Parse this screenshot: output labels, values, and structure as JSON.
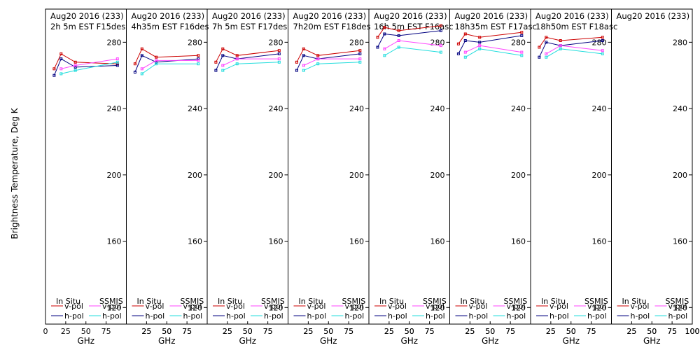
{
  "y_axis_label": "Brightness Temperature, Deg K",
  "legend_labels": {
    "insitu": "In Situ",
    "ssmis": "SSMIS",
    "vpol": "v-pol",
    "hpol": "h-pol"
  },
  "chart_data": {
    "type": "line",
    "ylabel": "Brightness Temperature, Deg K",
    "xlabel": "GHz",
    "xlim": [
      0,
      100
    ],
    "ylim": [
      110,
      300
    ],
    "yticks": [
      120,
      160,
      200,
      240,
      280
    ],
    "xticks": [
      0,
      25,
      50,
      75,
      100
    ],
    "x_tick_labels": [
      "0",
      "25",
      "50",
      "75",
      "100"
    ],
    "grid": false,
    "colors": {
      "insitu_vpol": "#cc0000",
      "insitu_hpol": "#000080",
      "ssmis_vpol": "#ff44ff",
      "ssmis_hpol": "#22dddd"
    },
    "panels": [
      {
        "title_line1": "Aug20 2016 (233)",
        "title_line2": "2h 5m  EST F15des",
        "series": {
          "insitu_vpol": {
            "x": [
              10.7,
              19.35,
              37,
              89
            ],
            "y": [
              264,
              273,
              268,
              267
            ]
          },
          "insitu_hpol": {
            "x": [
              10.7,
              19.35,
              37,
              89
            ],
            "y": [
              260,
              270,
              265,
              266
            ]
          },
          "ssmis_vpol": {
            "x": [
              19.35,
              37,
              89
            ],
            "y": [
              264,
              266,
              270
            ]
          },
          "ssmis_hpol": {
            "x": [
              19.35,
              37,
              89
            ],
            "y": [
              261,
              263,
              268
            ]
          }
        }
      },
      {
        "title_line1": "Aug20 2016 (233)",
        "title_line2": "4h35m  EST F16des",
        "series": {
          "insitu_vpol": {
            "x": [
              10.7,
              19.35,
              37,
              89
            ],
            "y": [
              267,
              276,
              271,
              272
            ]
          },
          "insitu_hpol": {
            "x": [
              10.7,
              19.35,
              37,
              89
            ],
            "y": [
              262,
              272,
              268,
              270
            ]
          },
          "ssmis_vpol": {
            "x": [
              19.35,
              37,
              89
            ],
            "y": [
              264,
              269,
              269
            ]
          },
          "ssmis_hpol": {
            "x": [
              19.35,
              37,
              89
            ],
            "y": [
              261,
              267,
              267
            ]
          }
        }
      },
      {
        "title_line1": "Aug20 2016 (233)",
        "title_line2": "7h 5m  EST F17des",
        "series": {
          "insitu_vpol": {
            "x": [
              10.7,
              19.35,
              37,
              89
            ],
            "y": [
              268,
              276,
              272,
              275
            ]
          },
          "insitu_hpol": {
            "x": [
              10.7,
              19.35,
              37,
              89
            ],
            "y": [
              263,
              272,
              270,
              273
            ]
          },
          "ssmis_vpol": {
            "x": [
              19.35,
              37,
              89
            ],
            "y": [
              266,
              270,
              270
            ]
          },
          "ssmis_hpol": {
            "x": [
              19.35,
              37,
              89
            ],
            "y": [
              263,
              267,
              268
            ]
          }
        }
      },
      {
        "title_line1": "Aug20 2016 (233)",
        "title_line2": "7h20m  EST F18des",
        "series": {
          "insitu_vpol": {
            "x": [
              10.7,
              19.35,
              37,
              89
            ],
            "y": [
              268,
              276,
              272,
              275
            ]
          },
          "insitu_hpol": {
            "x": [
              10.7,
              19.35,
              37,
              89
            ],
            "y": [
              263,
              272,
              270,
              273
            ]
          },
          "ssmis_vpol": {
            "x": [
              19.35,
              37,
              89
            ],
            "y": [
              266,
              270,
              270
            ]
          },
          "ssmis_hpol": {
            "x": [
              19.35,
              37,
              89
            ],
            "y": [
              263,
              267,
              268
            ]
          }
        }
      },
      {
        "title_line1": "Aug20 2016 (233)",
        "title_line2": "16h 5m  EST F16asc",
        "series": {
          "insitu_vpol": {
            "x": [
              10.7,
              19.35,
              37,
              89
            ],
            "y": [
              283,
              289,
              287,
              290
            ]
          },
          "insitu_hpol": {
            "x": [
              10.7,
              19.35,
              37,
              89
            ],
            "y": [
              277,
              285,
              284,
              287
            ]
          },
          "ssmis_vpol": {
            "x": [
              19.35,
              37,
              89
            ],
            "y": [
              276,
              281,
              278
            ]
          },
          "ssmis_hpol": {
            "x": [
              19.35,
              37,
              89
            ],
            "y": [
              272,
              277,
              274
            ]
          }
        }
      },
      {
        "title_line1": "Aug20 2016 (233)",
        "title_line2": "18h35m  EST F17asc",
        "series": {
          "insitu_vpol": {
            "x": [
              10.7,
              19.35,
              37,
              89
            ],
            "y": [
              279,
              285,
              283,
              286
            ]
          },
          "insitu_hpol": {
            "x": [
              10.7,
              19.35,
              37,
              89
            ],
            "y": [
              273,
              281,
              280,
              284
            ]
          },
          "ssmis_vpol": {
            "x": [
              19.35,
              37,
              89
            ],
            "y": [
              274,
              278,
              274
            ]
          },
          "ssmis_hpol": {
            "x": [
              19.35,
              37,
              89
            ],
            "y": [
              271,
              276,
              272
            ]
          }
        }
      },
      {
        "title_line1": "Aug20 2016 (233)",
        "title_line2": "18h50m  EST F18asc",
        "series": {
          "insitu_vpol": {
            "x": [
              10.7,
              19.35,
              37,
              89
            ],
            "y": [
              277,
              283,
              281,
              283
            ]
          },
          "insitu_hpol": {
            "x": [
              10.7,
              19.35,
              37,
              89
            ],
            "y": [
              271,
              280,
              278,
              281
            ]
          },
          "ssmis_vpol": {
            "x": [
              19.35,
              37,
              89
            ],
            "y": [
              273,
              278,
              275
            ]
          },
          "ssmis_hpol": {
            "x": [
              19.35,
              37,
              89
            ],
            "y": [
              271,
              276,
              273
            ]
          }
        }
      },
      {
        "title_line1": "Aug20 2016 (233)",
        "title_line2": "",
        "series": {}
      }
    ]
  }
}
